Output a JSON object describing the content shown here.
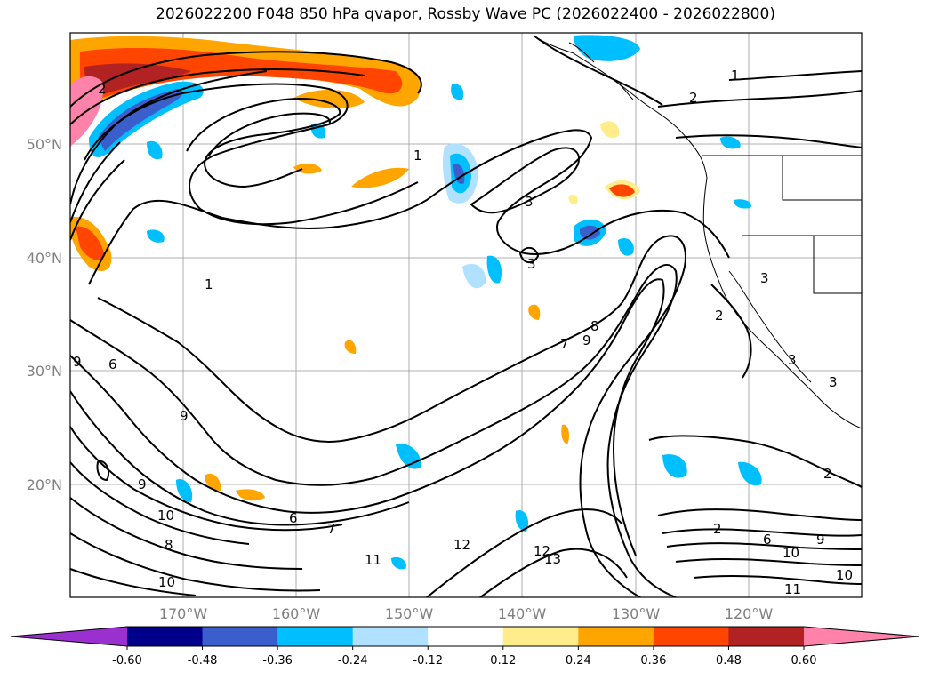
{
  "title": "2026022200 F048 850 hPa qvapor, Rossby Wave PC (2026022400 - 2026022800)",
  "map": {
    "lat_labels": [
      "50°N",
      "40°N",
      "30°N",
      "20°N"
    ],
    "lon_labels": [
      "170°W",
      "160°W",
      "150°W",
      "140°W",
      "130°W",
      "120°W"
    ],
    "lat_values": [
      50,
      40,
      30,
      20
    ],
    "lon_values": [
      -170,
      -160,
      -150,
      -140,
      -130,
      -120
    ],
    "extent": {
      "lon": [
        -180,
        -110
      ],
      "lat": [
        10,
        60
      ]
    }
  },
  "colorbar": {
    "ticks": [
      "-0.60",
      "-0.48",
      "-0.36",
      "-0.24",
      "-0.12",
      "0.12",
      "0.24",
      "0.36",
      "0.48",
      "0.60"
    ],
    "colors": [
      "#9b30d0",
      "#00008b",
      "#3a5fcd",
      "#00bfff",
      "#b0e2ff",
      "#ffffff",
      "#ffec8b",
      "#ffa500",
      "#ff4500",
      "#b22222",
      "#ff82ab"
    ],
    "extend": "both"
  },
  "contour_labels": [
    "1",
    "2",
    "3",
    "6",
    "7",
    "8",
    "9",
    "10",
    "11",
    "12",
    "13"
  ]
}
